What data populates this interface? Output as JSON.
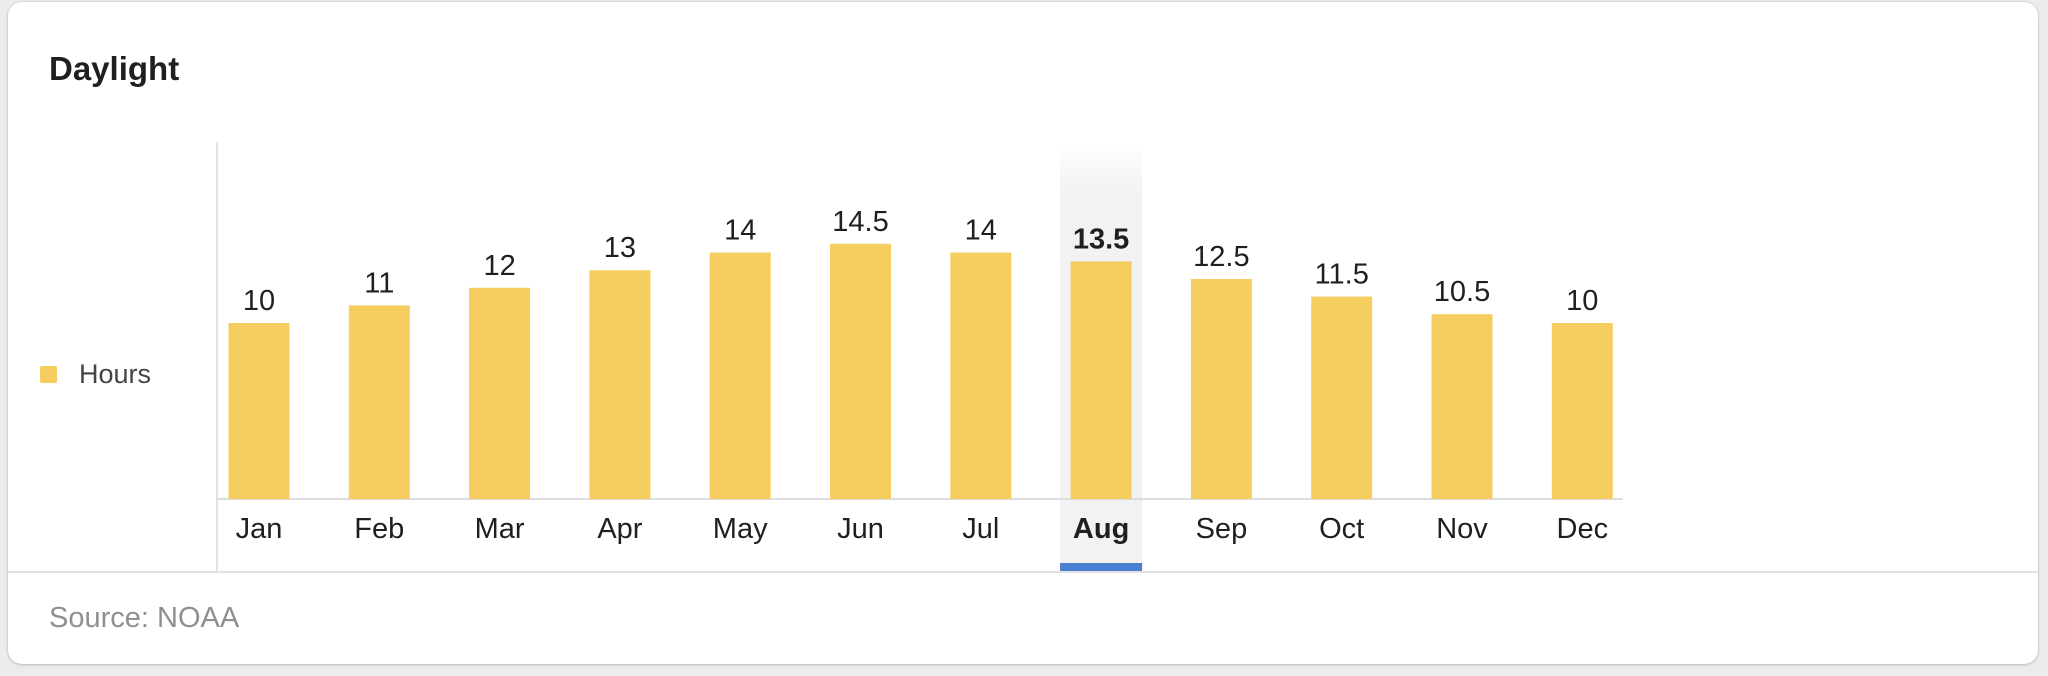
{
  "chart_data": {
    "type": "bar",
    "title": "Daylight",
    "categories": [
      "Jan",
      "Feb",
      "Mar",
      "Apr",
      "May",
      "Jun",
      "Jul",
      "Aug",
      "Sep",
      "Oct",
      "Nov",
      "Dec"
    ],
    "series": [
      {
        "name": "Hours",
        "values": [
          10,
          11,
          12,
          13,
          14,
          14.5,
          14,
          13.5,
          12.5,
          11.5,
          10.5,
          10
        ]
      }
    ],
    "data_labels": [
      "10",
      "11",
      "12",
      "13",
      "14",
      "14.5",
      "14",
      "13.5",
      "12.5",
      "11.5",
      "10.5",
      "10"
    ],
    "selected_category": "Aug",
    "ylim": [
      0,
      20
    ],
    "legend_position": "left",
    "colors": {
      "bar": "#f6cd5f",
      "highlight_band": "#f2f2f2",
      "selected_indicator": "#4a7fd4"
    },
    "source": "Source: NOAA"
  }
}
